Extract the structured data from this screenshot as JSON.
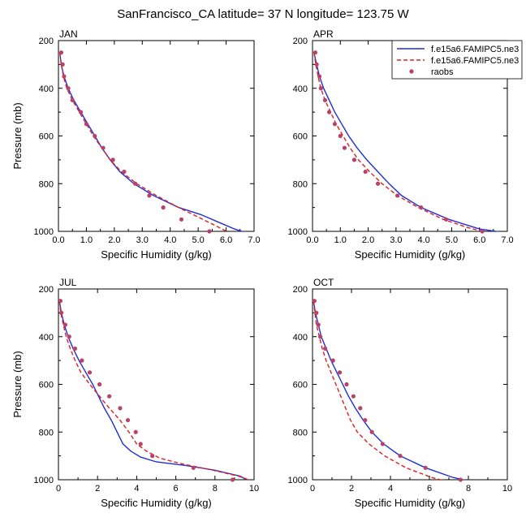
{
  "figure": {
    "title": "SanFrancisco_CA  latitude= 37 N longitude= 123.75 W"
  },
  "legend": {
    "placement": "top-right",
    "entries": [
      "f.e15a6.FAMIPC5.ne3",
      "f.e15a6.FAMIPC5.ne3",
      "raobs"
    ]
  },
  "colors": {
    "model_solid": "#1f2fd6",
    "model_dashed": "#dd1f1f",
    "raobs": "#b8436a"
  },
  "chart_data": [
    {
      "type": "line",
      "panel_label": "JAN",
      "xlabel": "Specific Humidity (g/kg)",
      "ylabel": "Pressure (mb)",
      "xlim": [
        0,
        7
      ],
      "ylim": [
        1000,
        200
      ],
      "xticks": [
        "0.0",
        "1.0",
        "2.0",
        "3.0",
        "4.0",
        "5.0",
        "6.0",
        "7.0"
      ],
      "yticks": [
        "200",
        "400",
        "600",
        "800",
        "1000"
      ],
      "series": [
        {
          "name": "f.e15a6.FAMIPC5.ne3",
          "style": "solid",
          "color": "#1f2fd6",
          "points": [
            [
              0.05,
              250
            ],
            [
              0.1,
              300
            ],
            [
              0.2,
              350
            ],
            [
              0.35,
              400
            ],
            [
              0.55,
              450
            ],
            [
              0.8,
              500
            ],
            [
              1.05,
              550
            ],
            [
              1.3,
              600
            ],
            [
              1.55,
              650
            ],
            [
              1.85,
              700
            ],
            [
              2.2,
              750
            ],
            [
              2.7,
              800
            ],
            [
              3.4,
              850
            ],
            [
              4.3,
              900
            ],
            [
              5.1,
              930
            ],
            [
              5.7,
              960
            ],
            [
              6.3,
              990
            ],
            [
              6.7,
              1005
            ]
          ]
        },
        {
          "name": "f.e15a6.FAMIPC5.ne3",
          "style": "dashed",
          "color": "#dd1f1f",
          "points": [
            [
              0.05,
              250
            ],
            [
              0.1,
              300
            ],
            [
              0.18,
              350
            ],
            [
              0.3,
              400
            ],
            [
              0.5,
              450
            ],
            [
              0.75,
              500
            ],
            [
              1.0,
              550
            ],
            [
              1.25,
              600
            ],
            [
              1.55,
              650
            ],
            [
              1.85,
              700
            ],
            [
              2.25,
              750
            ],
            [
              2.8,
              800
            ],
            [
              3.5,
              850
            ],
            [
              4.3,
              900
            ],
            [
              5.0,
              940
            ],
            [
              5.6,
              975
            ],
            [
              6.1,
              1005
            ]
          ]
        },
        {
          "name": "raobs",
          "style": "markers",
          "color": "#b8436a",
          "points": [
            [
              0.1,
              250
            ],
            [
              0.15,
              300
            ],
            [
              0.2,
              350
            ],
            [
              0.35,
              400
            ],
            [
              0.5,
              450
            ],
            [
              0.8,
              500
            ],
            [
              1.0,
              550
            ],
            [
              1.3,
              600
            ],
            [
              1.6,
              650
            ],
            [
              1.95,
              700
            ],
            [
              2.35,
              750
            ],
            [
              2.75,
              800
            ],
            [
              3.25,
              850
            ],
            [
              3.75,
              900
            ],
            [
              4.4,
              950
            ],
            [
              5.4,
              1000
            ]
          ]
        }
      ]
    },
    {
      "type": "line",
      "panel_label": "APR",
      "xlabel": "Specific Humidity (g/kg)",
      "ylabel": "Pressure (mb)",
      "xlim": [
        0,
        7
      ],
      "ylim": [
        1000,
        200
      ],
      "xticks": [
        "0.0",
        "1.0",
        "2.0",
        "3.0",
        "4.0",
        "5.0",
        "6.0",
        "7.0"
      ],
      "yticks": [
        "200",
        "400",
        "600",
        "800",
        "1000"
      ],
      "series": [
        {
          "name": "f.e15a6.FAMIPC5.ne3",
          "style": "solid",
          "color": "#1f2fd6",
          "points": [
            [
              0.05,
              250
            ],
            [
              0.15,
              300
            ],
            [
              0.25,
              350
            ],
            [
              0.4,
              400
            ],
            [
              0.6,
              450
            ],
            [
              0.8,
              500
            ],
            [
              1.05,
              550
            ],
            [
              1.3,
              600
            ],
            [
              1.6,
              650
            ],
            [
              1.95,
              700
            ],
            [
              2.35,
              750
            ],
            [
              2.75,
              800
            ],
            [
              3.2,
              850
            ],
            [
              3.9,
              900
            ],
            [
              4.9,
              950
            ],
            [
              6.0,
              990
            ],
            [
              6.9,
              1005
            ]
          ]
        },
        {
          "name": "f.e15a6.FAMIPC5.ne3",
          "style": "dashed",
          "color": "#dd1f1f",
          "points": [
            [
              0.05,
              250
            ],
            [
              0.12,
              300
            ],
            [
              0.2,
              350
            ],
            [
              0.3,
              400
            ],
            [
              0.45,
              450
            ],
            [
              0.65,
              500
            ],
            [
              0.85,
              550
            ],
            [
              1.1,
              600
            ],
            [
              1.35,
              650
            ],
            [
              1.65,
              700
            ],
            [
              2.05,
              750
            ],
            [
              2.5,
              800
            ],
            [
              3.05,
              850
            ],
            [
              3.8,
              900
            ],
            [
              4.7,
              950
            ],
            [
              5.6,
              985
            ],
            [
              6.3,
              1005
            ]
          ]
        },
        {
          "name": "raobs",
          "style": "markers",
          "color": "#b8436a",
          "points": [
            [
              0.1,
              250
            ],
            [
              0.15,
              300
            ],
            [
              0.25,
              350
            ],
            [
              0.3,
              400
            ],
            [
              0.45,
              450
            ],
            [
              0.6,
              500
            ],
            [
              0.8,
              550
            ],
            [
              1.0,
              600
            ],
            [
              1.15,
              650
            ],
            [
              1.5,
              700
            ],
            [
              1.9,
              750
            ],
            [
              2.35,
              800
            ],
            [
              3.05,
              850
            ],
            [
              3.9,
              900
            ],
            [
              4.8,
              950
            ],
            [
              6.1,
              1000
            ]
          ]
        }
      ]
    },
    {
      "type": "line",
      "panel_label": "JUL",
      "xlabel": "Specific Humidity (g/kg)",
      "ylabel": "Pressure (mb)",
      "xlim": [
        0,
        10
      ],
      "ylim": [
        1000,
        200
      ],
      "xticks": [
        "0",
        "2",
        "4",
        "6",
        "8",
        "10"
      ],
      "yticks": [
        "200",
        "400",
        "600",
        "800",
        "1000"
      ],
      "series": [
        {
          "name": "f.e15a6.FAMIPC5.ne3",
          "style": "solid",
          "color": "#1f2fd6",
          "points": [
            [
              0.05,
              250
            ],
            [
              0.15,
              300
            ],
            [
              0.3,
              350
            ],
            [
              0.5,
              400
            ],
            [
              0.75,
              450
            ],
            [
              1.05,
              500
            ],
            [
              1.4,
              550
            ],
            [
              1.75,
              600
            ],
            [
              2.05,
              650
            ],
            [
              2.35,
              700
            ],
            [
              2.7,
              750
            ],
            [
              3.0,
              800
            ],
            [
              3.3,
              850
            ],
            [
              3.7,
              880
            ],
            [
              4.2,
              905
            ],
            [
              5.0,
              925
            ],
            [
              6.5,
              940
            ],
            [
              8.0,
              960
            ],
            [
              9.3,
              985
            ],
            [
              9.7,
              1005
            ]
          ]
        },
        {
          "name": "f.e15a6.FAMIPC5.ne3",
          "style": "dashed",
          "color": "#dd1f1f",
          "points": [
            [
              0.05,
              250
            ],
            [
              0.12,
              300
            ],
            [
              0.25,
              350
            ],
            [
              0.4,
              400
            ],
            [
              0.6,
              450
            ],
            [
              0.85,
              500
            ],
            [
              1.15,
              550
            ],
            [
              1.6,
              600
            ],
            [
              2.1,
              650
            ],
            [
              2.6,
              700
            ],
            [
              3.15,
              750
            ],
            [
              3.6,
              800
            ],
            [
              4.0,
              850
            ],
            [
              4.5,
              880
            ],
            [
              5.2,
              910
            ],
            [
              6.4,
              935
            ],
            [
              7.8,
              958
            ],
            [
              9.2,
              985
            ],
            [
              9.9,
              1005
            ]
          ]
        },
        {
          "name": "raobs",
          "style": "markers",
          "color": "#b8436a",
          "points": [
            [
              0.1,
              250
            ],
            [
              0.15,
              300
            ],
            [
              0.35,
              350
            ],
            [
              0.55,
              400
            ],
            [
              0.85,
              450
            ],
            [
              1.2,
              500
            ],
            [
              1.6,
              550
            ],
            [
              2.1,
              600
            ],
            [
              2.6,
              650
            ],
            [
              3.15,
              700
            ],
            [
              3.55,
              750
            ],
            [
              3.95,
              800
            ],
            [
              4.2,
              850
            ],
            [
              4.8,
              900
            ],
            [
              6.9,
              950
            ],
            [
              8.9,
              1000
            ]
          ]
        }
      ]
    },
    {
      "type": "line",
      "panel_label": "OCT",
      "xlabel": "Specific Humidity (g/kg)",
      "ylabel": "Pressure (mb)",
      "xlim": [
        0,
        10
      ],
      "ylim": [
        1000,
        200
      ],
      "xticks": [
        "0",
        "2",
        "4",
        "6",
        "8",
        "10"
      ],
      "yticks": [
        "200",
        "400",
        "600",
        "800",
        "1000"
      ],
      "series": [
        {
          "name": "f.e15a6.FAMIPC5.ne3",
          "style": "solid",
          "color": "#1f2fd6",
          "points": [
            [
              0.05,
              250
            ],
            [
              0.15,
              300
            ],
            [
              0.3,
              350
            ],
            [
              0.45,
              400
            ],
            [
              0.7,
              450
            ],
            [
              0.95,
              500
            ],
            [
              1.25,
              550
            ],
            [
              1.55,
              600
            ],
            [
              1.85,
              650
            ],
            [
              2.2,
              700
            ],
            [
              2.6,
              750
            ],
            [
              3.05,
              800
            ],
            [
              3.65,
              850
            ],
            [
              4.5,
              900
            ],
            [
              5.8,
              950
            ],
            [
              7.2,
              990
            ],
            [
              8.0,
              1005
            ]
          ]
        },
        {
          "name": "f.e15a6.FAMIPC5.ne3",
          "style": "dashed",
          "color": "#dd1f1f",
          "points": [
            [
              0.05,
              250
            ],
            [
              0.12,
              300
            ],
            [
              0.2,
              350
            ],
            [
              0.35,
              400
            ],
            [
              0.5,
              450
            ],
            [
              0.7,
              500
            ],
            [
              0.95,
              550
            ],
            [
              1.2,
              600
            ],
            [
              1.45,
              650
            ],
            [
              1.7,
              700
            ],
            [
              1.95,
              750
            ],
            [
              2.3,
              800
            ],
            [
              2.9,
              850
            ],
            [
              3.7,
              900
            ],
            [
              4.8,
              950
            ],
            [
              6.1,
              990
            ],
            [
              6.8,
              1005
            ]
          ]
        },
        {
          "name": "raobs",
          "style": "markers",
          "color": "#b8436a",
          "points": [
            [
              0.1,
              250
            ],
            [
              0.2,
              300
            ],
            [
              0.3,
              350
            ],
            [
              0.4,
              400
            ],
            [
              0.65,
              450
            ],
            [
              1.05,
              500
            ],
            [
              1.4,
              550
            ],
            [
              1.75,
              600
            ],
            [
              2.1,
              650
            ],
            [
              2.45,
              700
            ],
            [
              2.7,
              750
            ],
            [
              3.05,
              800
            ],
            [
              3.6,
              850
            ],
            [
              4.5,
              900
            ],
            [
              5.8,
              950
            ],
            [
              7.6,
              1000
            ]
          ]
        }
      ]
    }
  ]
}
